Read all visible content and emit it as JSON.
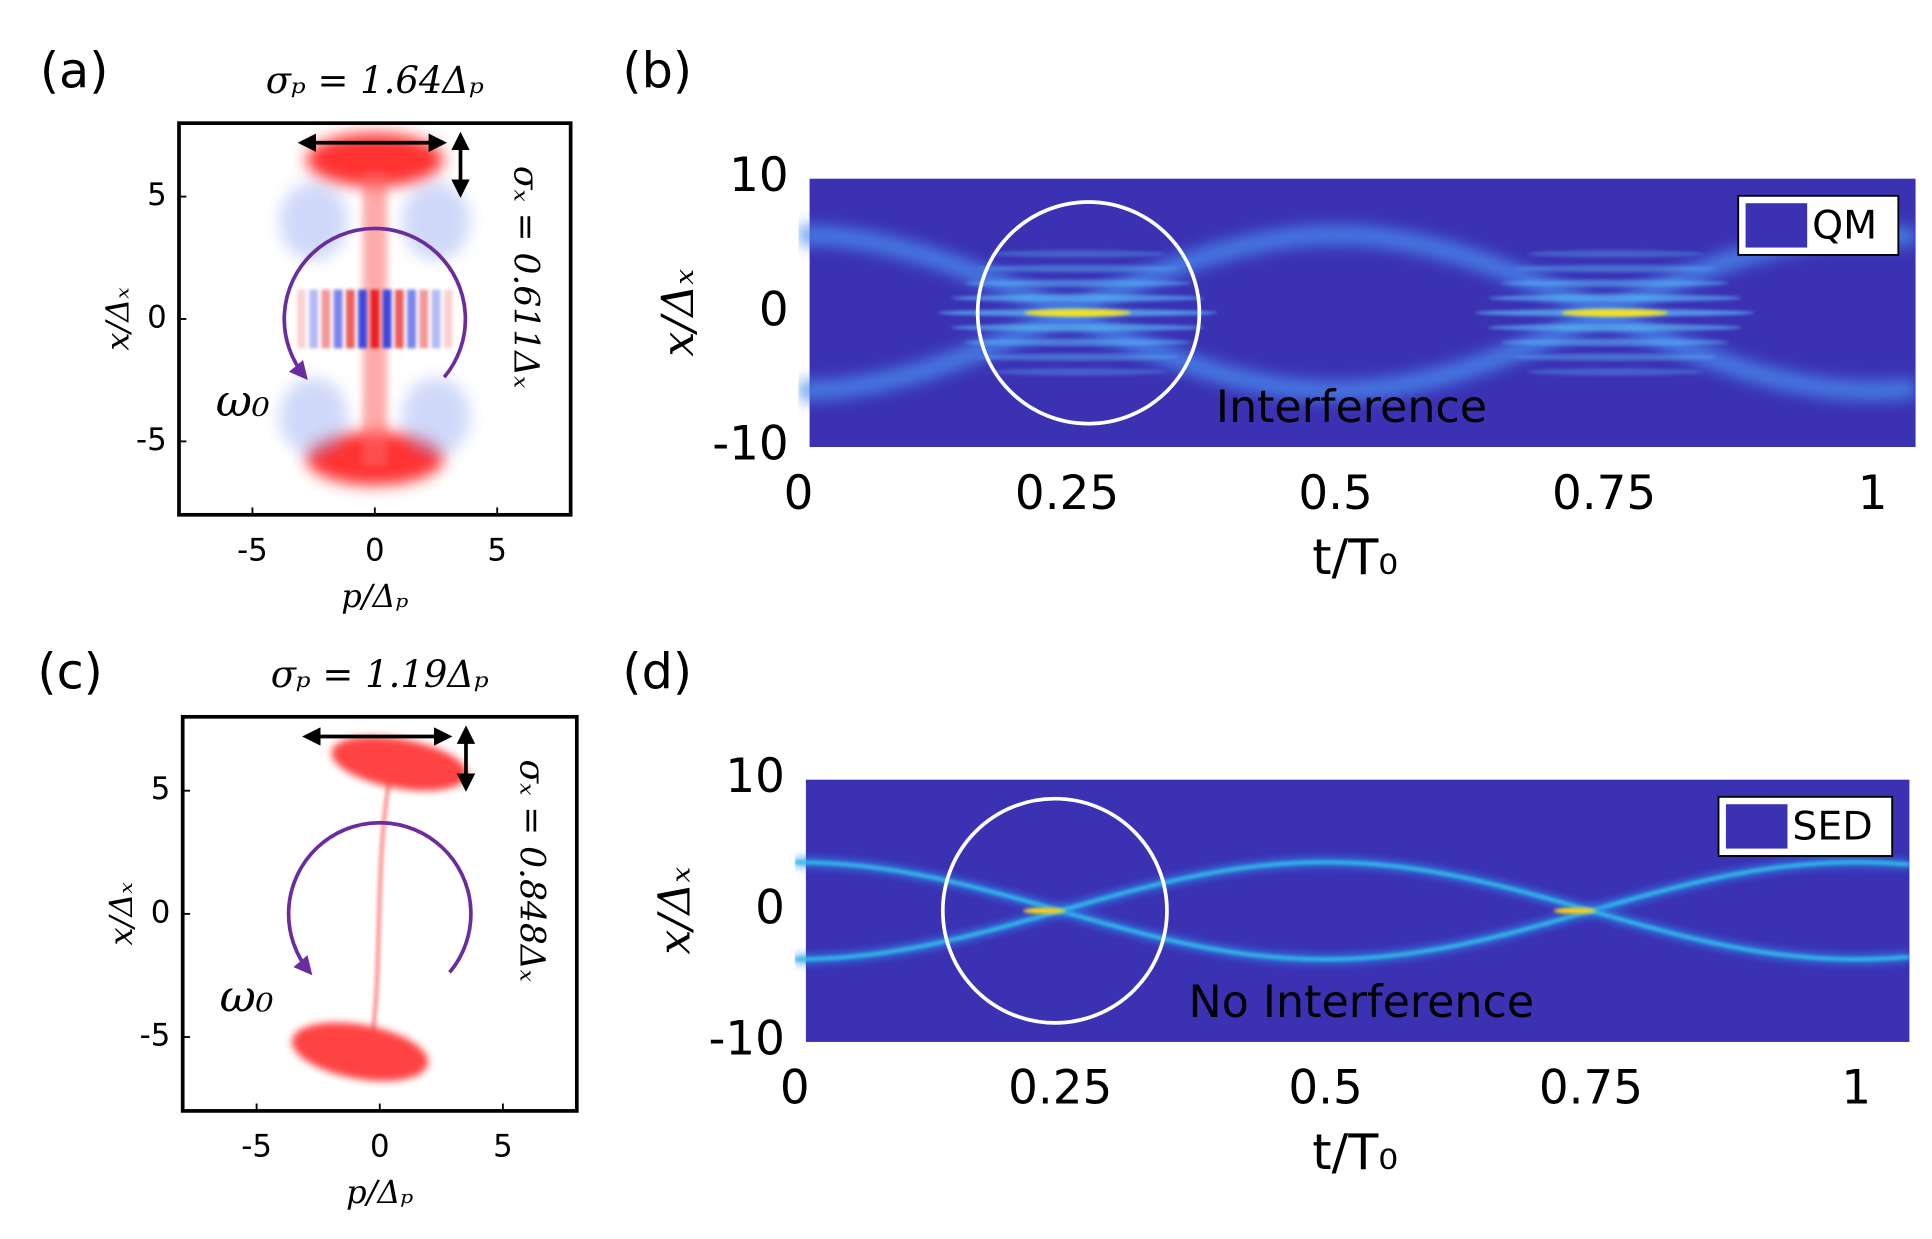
{
  "chart_data": [
    {
      "type": "phase-space",
      "panel_label": "(a)",
      "title": "σₚ = 1.64Δₚ",
      "xlabel": "p/Δₚ",
      "ylabel": "x/Δₓ",
      "xlim": [
        -8,
        8
      ],
      "ylim": [
        -8,
        8
      ],
      "xticks": [
        -5,
        0,
        5
      ],
      "yticks": [
        -5,
        0,
        5
      ],
      "annotations": [
        "σₓ = 0.611Δₓ",
        "ω₀"
      ],
      "style": "wigner"
    },
    {
      "type": "heatmap",
      "panel_label": "(b)",
      "xlabel": "t/T₀",
      "ylabel": "x/Δₓ",
      "xlim": [
        0,
        1.04
      ],
      "ylim": [
        -10,
        10
      ],
      "xticks": [
        0,
        0.25,
        0.5,
        0.75,
        1
      ],
      "yticks": [
        -10,
        0,
        10
      ],
      "series": [
        {
          "name": "QM",
          "color": "#3b31b3"
        }
      ],
      "annotations": [
        "Interference"
      ],
      "style": "qm"
    },
    {
      "type": "phase-space",
      "panel_label": "(c)",
      "title": "σₚ = 1.19Δₚ",
      "xlabel": "p/Δₚ",
      "ylabel": "x/Δₓ",
      "xlim": [
        -8,
        8
      ],
      "ylim": [
        -8,
        8
      ],
      "xticks": [
        -5,
        0,
        5
      ],
      "yticks": [
        -5,
        0,
        5
      ],
      "annotations": [
        "σₓ = 0.848Δₓ",
        "ω₀"
      ],
      "style": "scatter"
    },
    {
      "type": "heatmap",
      "panel_label": "(d)",
      "xlabel": "t/T₀",
      "ylabel": "x/Δₓ",
      "xlim": [
        0,
        1.05
      ],
      "ylim": [
        -10,
        10
      ],
      "xticks": [
        0,
        0.25,
        0.5,
        0.75,
        1
      ],
      "yticks": [
        -10,
        0,
        10
      ],
      "series": [
        {
          "name": "SED",
          "color": "#3b31b3"
        }
      ],
      "annotations": [
        "No Interference"
      ],
      "style": "sed"
    }
  ]
}
